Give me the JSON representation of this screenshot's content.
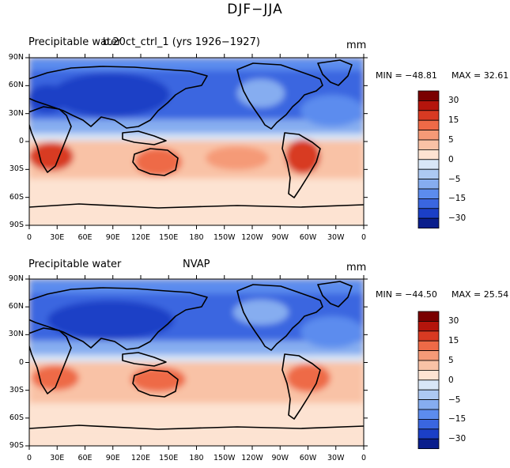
{
  "title": "DJF−JJA",
  "panels": [
    {
      "left_label": "Precipitable water",
      "center_label": "b.20ct_ctrl_1 (yrs 1926−1927)",
      "units": "mm",
      "min_text": "MIN = −48.81",
      "max_text": "MAX =  32.61"
    },
    {
      "left_label": "Precipitable water",
      "center_label": "NVAP",
      "units": "mm",
      "min_text": "MIN = −44.50",
      "max_text": "MAX =  25.54"
    }
  ],
  "x_ticks": [
    "0",
    "30E",
    "60E",
    "90E",
    "120E",
    "150E",
    "180",
    "150W",
    "120W",
    "90W",
    "60W",
    "30W",
    "0"
  ],
  "y_ticks": [
    "90N",
    "60N",
    "30N",
    "0",
    "30S",
    "60S",
    "90S"
  ],
  "colorbar": {
    "labels": [
      "30",
      "15",
      "5",
      "0",
      "−5",
      "−15",
      "−30"
    ],
    "colors": [
      "#7a0000",
      "#b4150c",
      "#d83a22",
      "#ee6a47",
      "#f59a77",
      "#f9c2a6",
      "#fde3d2",
      "#d8e6f7",
      "#adc9f2",
      "#86adf0",
      "#5c8cee",
      "#3a66e0",
      "#1b3fc6",
      "#0a1e8c"
    ]
  },
  "chart_data": {
    "type": "heatmap",
    "title": "DJF−JJA",
    "x_range": [
      0,
      360
    ],
    "y_range": [
      -90,
      90
    ],
    "panels": [
      {
        "variable": "Precipitable water",
        "source": "b.20ct_ctrl_1 (yrs 1926−1927)",
        "units": "mm",
        "min": -48.81,
        "max": 32.61
      },
      {
        "variable": "Precipitable water",
        "source": "NVAP",
        "units": "mm",
        "min": -44.5,
        "max": 25.54
      }
    ],
    "colorbar_levels": [
      30,
      15,
      5,
      0,
      -5,
      -15,
      -30
    ]
  }
}
